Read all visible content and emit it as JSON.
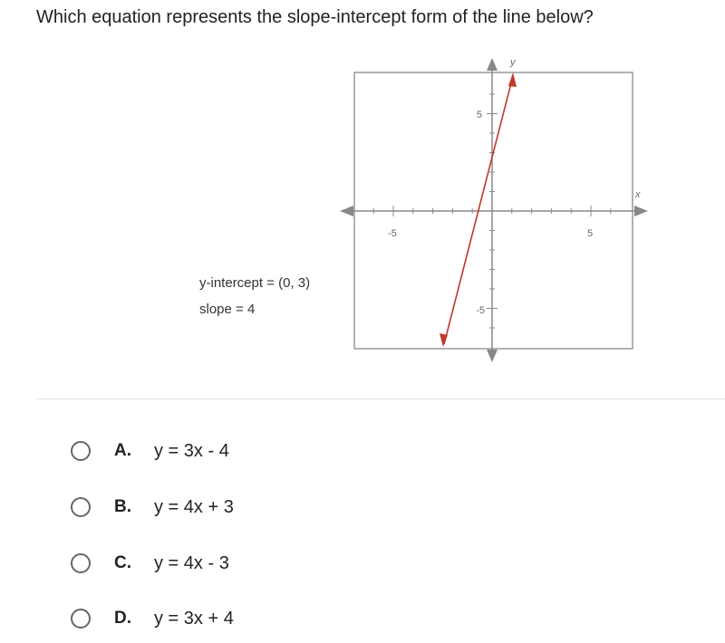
{
  "question": "Which equation represents the slope-intercept form of the line below?",
  "graph": {
    "x_axis_label": "x",
    "y_axis_label": "y",
    "x_tick_labels": [
      "-5",
      "5"
    ],
    "y_tick_labels": [
      "5",
      "-5"
    ],
    "notes": [
      "y-intercept = (0, 3)",
      "slope = 4"
    ]
  },
  "options": [
    {
      "letter": "A.",
      "equation": "y = 3x - 4"
    },
    {
      "letter": "B.",
      "equation": "y = 4x + 3"
    },
    {
      "letter": "C.",
      "equation": "y = 4x - 3"
    },
    {
      "letter": "D.",
      "equation": "y = 3x + 4"
    }
  ]
}
